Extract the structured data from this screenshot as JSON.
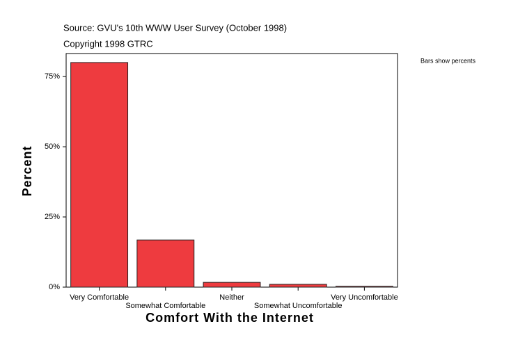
{
  "chart_data": {
    "type": "bar",
    "subtitle": "Source: GVU's 10th WWW User Survey (October 1998)",
    "copyright": "Copyright 1998 GTRC",
    "note": "Bars show percents",
    "x_label": "Comfort With the Internet",
    "y_label": "Percent",
    "categories": [
      "Very Comfortable",
      "Somewhat Comfortable",
      "Neither",
      "Somewhat Uncomfortable",
      "Very Uncomfortable"
    ],
    "values": [
      80.0,
      16.8,
      1.7,
      1.0,
      0.3
    ],
    "color": "#ee3b3f",
    "ylim": [
      0,
      83.2
    ],
    "yticks": [
      {
        "value": 0,
        "label": "0%"
      },
      {
        "value": 25,
        "label": "25%"
      },
      {
        "value": 50,
        "label": "50%"
      },
      {
        "value": 75,
        "label": "75%"
      }
    ],
    "grid": false
  }
}
